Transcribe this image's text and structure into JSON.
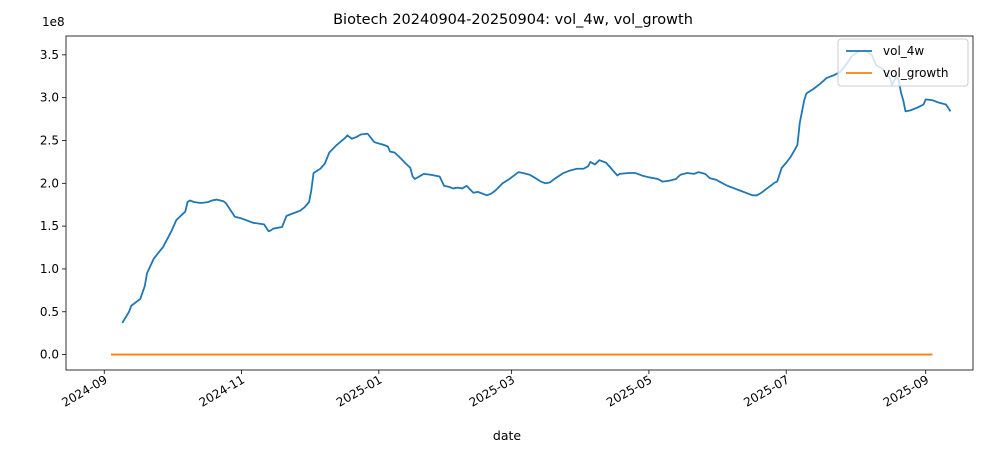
{
  "chart_data": {
    "type": "line",
    "title": "Biotech 20240904-20250904: vol_4w, vol_growth",
    "xlabel": "date",
    "ylabel": "",
    "y_offset_text": "1e8",
    "x_range": [
      "2024-08-15",
      "2025-09-22"
    ],
    "ylim": [
      -0.18,
      3.72
    ],
    "legend_position": "top-right",
    "x_ticks": [
      {
        "date": "2024-09-01",
        "label": "2024-09"
      },
      {
        "date": "2024-11-01",
        "label": "2024-11"
      },
      {
        "date": "2025-01-01",
        "label": "2025-01"
      },
      {
        "date": "2025-03-01",
        "label": "2025-03"
      },
      {
        "date": "2025-05-01",
        "label": "2025-05"
      },
      {
        "date": "2025-07-01",
        "label": "2025-07"
      },
      {
        "date": "2025-09-01",
        "label": "2025-09"
      }
    ],
    "y_ticks": [
      {
        "value": 0.0,
        "label": "0.0"
      },
      {
        "value": 0.5,
        "label": "0.5"
      },
      {
        "value": 1.0,
        "label": "1.0"
      },
      {
        "value": 1.5,
        "label": "1.5"
      },
      {
        "value": 2.0,
        "label": "2.0"
      },
      {
        "value": 2.5,
        "label": "2.5"
      },
      {
        "value": 3.0,
        "label": "3.0"
      },
      {
        "value": 3.5,
        "label": "3.5"
      }
    ],
    "series": [
      {
        "name": "vol_4w",
        "color": "#1f77b4",
        "points": [
          [
            "2024-09-09",
            0.37
          ],
          [
            "2024-09-12",
            0.5
          ],
          [
            "2024-09-13",
            0.57
          ],
          [
            "2024-09-17",
            0.65
          ],
          [
            "2024-09-19",
            0.8
          ],
          [
            "2024-09-20",
            0.95
          ],
          [
            "2024-09-23",
            1.12
          ],
          [
            "2024-09-26",
            1.22
          ],
          [
            "2024-09-27",
            1.25
          ],
          [
            "2024-10-01",
            1.45
          ],
          [
            "2024-10-03",
            1.57
          ],
          [
            "2024-10-07",
            1.67
          ],
          [
            "2024-10-08",
            1.78
          ],
          [
            "2024-10-09",
            1.8
          ],
          [
            "2024-10-11",
            1.78
          ],
          [
            "2024-10-14",
            1.77
          ],
          [
            "2024-10-17",
            1.78
          ],
          [
            "2024-10-19",
            1.8
          ],
          [
            "2024-10-21",
            1.81
          ],
          [
            "2024-10-24",
            1.79
          ],
          [
            "2024-10-25",
            1.77
          ],
          [
            "2024-10-28",
            1.65
          ],
          [
            "2024-10-29",
            1.61
          ],
          [
            "2024-11-01",
            1.59
          ],
          [
            "2024-11-04",
            1.56
          ],
          [
            "2024-11-06",
            1.54
          ],
          [
            "2024-11-11",
            1.52
          ],
          [
            "2024-11-13",
            1.44
          ],
          [
            "2024-11-14",
            1.45
          ],
          [
            "2024-11-15",
            1.47
          ],
          [
            "2024-11-19",
            1.49
          ],
          [
            "2024-11-21",
            1.62
          ],
          [
            "2024-11-23",
            1.64
          ],
          [
            "2024-11-27",
            1.68
          ],
          [
            "2024-11-29",
            1.72
          ],
          [
            "2024-12-01",
            1.78
          ],
          [
            "2024-12-02",
            1.92
          ],
          [
            "2024-12-03",
            2.12
          ],
          [
            "2024-12-06",
            2.17
          ],
          [
            "2024-12-08",
            2.23
          ],
          [
            "2024-12-10",
            2.36
          ],
          [
            "2024-12-13",
            2.44
          ],
          [
            "2024-12-17",
            2.53
          ],
          [
            "2024-12-18",
            2.56
          ],
          [
            "2024-12-20",
            2.52
          ],
          [
            "2024-12-22",
            2.54
          ],
          [
            "2024-12-24",
            2.57
          ],
          [
            "2024-12-27",
            2.58
          ],
          [
            "2024-12-30",
            2.48
          ],
          [
            "2025-01-03",
            2.45
          ],
          [
            "2025-01-05",
            2.43
          ],
          [
            "2025-01-06",
            2.37
          ],
          [
            "2025-01-08",
            2.36
          ],
          [
            "2025-01-10",
            2.31
          ],
          [
            "2025-01-13",
            2.23
          ],
          [
            "2025-01-15",
            2.18
          ],
          [
            "2025-01-16",
            2.08
          ],
          [
            "2025-01-17",
            2.05
          ],
          [
            "2025-01-19",
            2.08
          ],
          [
            "2025-01-21",
            2.11
          ],
          [
            "2025-01-24",
            2.1
          ],
          [
            "2025-01-28",
            2.08
          ],
          [
            "2025-01-30",
            1.97
          ],
          [
            "2025-02-01",
            1.96
          ],
          [
            "2025-02-03",
            1.94
          ],
          [
            "2025-02-05",
            1.95
          ],
          [
            "2025-02-07",
            1.94
          ],
          [
            "2025-02-09",
            1.97
          ],
          [
            "2025-02-12",
            1.89
          ],
          [
            "2025-02-14",
            1.9
          ],
          [
            "2025-02-18",
            1.86
          ],
          [
            "2025-02-20",
            1.88
          ],
          [
            "2025-02-22",
            1.92
          ],
          [
            "2025-02-25",
            2.0
          ],
          [
            "2025-02-28",
            2.05
          ],
          [
            "2025-03-01",
            2.07
          ],
          [
            "2025-03-04",
            2.13
          ],
          [
            "2025-03-06",
            2.12
          ],
          [
            "2025-03-09",
            2.1
          ],
          [
            "2025-03-11",
            2.07
          ],
          [
            "2025-03-14",
            2.02
          ],
          [
            "2025-03-16",
            2.0
          ],
          [
            "2025-03-18",
            2.01
          ],
          [
            "2025-03-20",
            2.05
          ],
          [
            "2025-03-24",
            2.12
          ],
          [
            "2025-03-27",
            2.15
          ],
          [
            "2025-03-30",
            2.17
          ],
          [
            "2025-04-02",
            2.17
          ],
          [
            "2025-04-04",
            2.2
          ],
          [
            "2025-04-05",
            2.25
          ],
          [
            "2025-04-07",
            2.22
          ],
          [
            "2025-04-09",
            2.27
          ],
          [
            "2025-04-12",
            2.24
          ],
          [
            "2025-04-14",
            2.18
          ],
          [
            "2025-04-17",
            2.09
          ],
          [
            "2025-04-18",
            2.11
          ],
          [
            "2025-04-22",
            2.12
          ],
          [
            "2025-04-25",
            2.12
          ],
          [
            "2025-04-28",
            2.09
          ],
          [
            "2025-05-01",
            2.07
          ],
          [
            "2025-05-03",
            2.06
          ],
          [
            "2025-05-05",
            2.05
          ],
          [
            "2025-05-07",
            2.02
          ],
          [
            "2025-05-10",
            2.03
          ],
          [
            "2025-05-13",
            2.05
          ],
          [
            "2025-05-15",
            2.1
          ],
          [
            "2025-05-18",
            2.12
          ],
          [
            "2025-05-21",
            2.11
          ],
          [
            "2025-05-23",
            2.13
          ],
          [
            "2025-05-26",
            2.11
          ],
          [
            "2025-05-28",
            2.06
          ],
          [
            "2025-05-31",
            2.04
          ],
          [
            "2025-06-02",
            2.01
          ],
          [
            "2025-06-05",
            1.97
          ],
          [
            "2025-06-08",
            1.94
          ],
          [
            "2025-06-11",
            1.91
          ],
          [
            "2025-06-13",
            1.89
          ],
          [
            "2025-06-16",
            1.86
          ],
          [
            "2025-06-18",
            1.86
          ],
          [
            "2025-06-20",
            1.89
          ],
          [
            "2025-06-23",
            1.95
          ],
          [
            "2025-06-26",
            2.01
          ],
          [
            "2025-06-27",
            2.02
          ],
          [
            "2025-06-29",
            2.18
          ],
          [
            "2025-07-01",
            2.24
          ],
          [
            "2025-07-03",
            2.31
          ],
          [
            "2025-07-05",
            2.4
          ],
          [
            "2025-07-06",
            2.45
          ],
          [
            "2025-07-07",
            2.7
          ],
          [
            "2025-07-09",
            2.97
          ],
          [
            "2025-07-10",
            3.05
          ],
          [
            "2025-07-13",
            3.1
          ],
          [
            "2025-07-16",
            3.16
          ],
          [
            "2025-07-19",
            3.23
          ],
          [
            "2025-07-22",
            3.26
          ],
          [
            "2025-07-25",
            3.3
          ],
          [
            "2025-07-28",
            3.4
          ],
          [
            "2025-07-30",
            3.48
          ],
          [
            "2025-08-02",
            3.54
          ],
          [
            "2025-08-05",
            3.55
          ],
          [
            "2025-08-08",
            3.5
          ],
          [
            "2025-08-10",
            3.38
          ],
          [
            "2025-08-13",
            3.33
          ],
          [
            "2025-08-16",
            3.23
          ],
          [
            "2025-08-17",
            3.15
          ],
          [
            "2025-08-19",
            3.25
          ],
          [
            "2025-08-20",
            3.2
          ],
          [
            "2025-08-21",
            3.06
          ],
          [
            "2025-08-22",
            2.97
          ],
          [
            "2025-08-23",
            2.84
          ],
          [
            "2025-08-25",
            2.85
          ],
          [
            "2025-08-28",
            2.88
          ],
          [
            "2025-08-31",
            2.92
          ],
          [
            "2025-09-01",
            2.98
          ],
          [
            "2025-09-04",
            2.97
          ],
          [
            "2025-09-07",
            2.94
          ],
          [
            "2025-09-10",
            2.92
          ],
          [
            "2025-09-12",
            2.84
          ]
        ]
      },
      {
        "name": "vol_growth",
        "color": "#ff7f0e",
        "points": [
          [
            "2024-09-04",
            0.0
          ],
          [
            "2025-09-04",
            0.0
          ]
        ]
      }
    ]
  }
}
